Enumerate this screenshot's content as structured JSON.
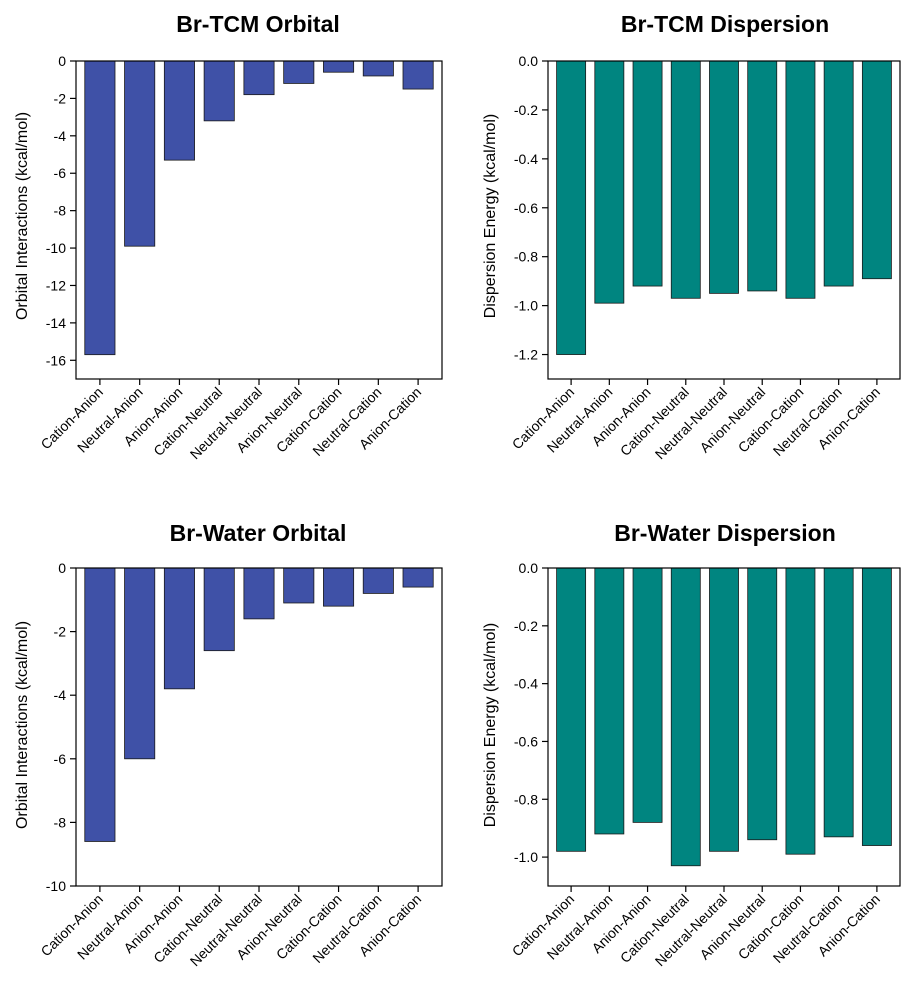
{
  "chart_data": [
    {
      "type": "bar",
      "title": "Br-TCM Orbital",
      "ylabel": "Orbital Interactions (kcal/mol)",
      "categories": [
        "Cation-Anion",
        "Neutral-Anion",
        "Anion-Anion",
        "Cation-Neutral",
        "Neutral-Neutral",
        "Anion-Neutral",
        "Cation-Cation",
        "Neutral-Cation",
        "Anion-Cation"
      ],
      "values": [
        -15.7,
        -9.9,
        -5.3,
        -3.2,
        -1.8,
        -1.2,
        -0.6,
        -0.8,
        -1.5
      ],
      "ylim": [
        -17,
        0
      ],
      "yticks": [
        "0",
        "-2",
        "-4",
        "-6",
        "-8",
        "-10",
        "-12",
        "-14",
        "-16"
      ],
      "ytick_values": [
        0,
        -2,
        -4,
        -6,
        -8,
        -10,
        -12,
        -14,
        -16
      ],
      "color": "#3f51a7"
    },
    {
      "type": "bar",
      "title": "Br-TCM Dispersion",
      "ylabel": "Dispersion Energy (kcal/mol)",
      "categories": [
        "Cation-Anion",
        "Neutral-Anion",
        "Anion-Anion",
        "Cation-Neutral",
        "Neutral-Neutral",
        "Anion-Neutral",
        "Cation-Cation",
        "Neutral-Cation",
        "Anion-Cation"
      ],
      "values": [
        -1.2,
        -0.99,
        -0.92,
        -0.97,
        -0.95,
        -0.94,
        -0.97,
        -0.92,
        -0.89
      ],
      "ylim": [
        -1.3,
        0
      ],
      "yticks": [
        "0.0",
        "-0.2",
        "-0.4",
        "-0.6",
        "-0.8",
        "-1.0",
        "-1.2"
      ],
      "ytick_values": [
        0,
        -0.2,
        -0.4,
        -0.6,
        -0.8,
        -1.0,
        -1.2
      ],
      "color": "#008580"
    },
    {
      "type": "bar",
      "title": "Br-Water Orbital",
      "ylabel": "Orbital Interactions (kcal/mol)",
      "categories": [
        "Cation-Anion",
        "Neutral-Anion",
        "Anion-Anion",
        "Cation-Neutral",
        "Neutral-Neutral",
        "Anion-Neutral",
        "Cation-Cation",
        "Neutral-Cation",
        "Anion-Cation"
      ],
      "values": [
        -8.6,
        -6.0,
        -3.8,
        -2.6,
        -1.6,
        -1.1,
        -1.2,
        -0.8,
        -0.6
      ],
      "ylim": [
        -10,
        0
      ],
      "yticks": [
        "0",
        "-2",
        "-4",
        "-6",
        "-8",
        "-10"
      ],
      "ytick_values": [
        0,
        -2,
        -4,
        -6,
        -8,
        -10
      ],
      "color": "#3f51a7"
    },
    {
      "type": "bar",
      "title": "Br-Water Dispersion",
      "ylabel": "Dispersion Energy (kcal/mol)",
      "categories": [
        "Cation-Anion",
        "Neutral-Anion",
        "Anion-Anion",
        "Cation-Neutral",
        "Neutral-Neutral",
        "Anion-Neutral",
        "Cation-Cation",
        "Neutral-Cation",
        "Anion-Cation"
      ],
      "values": [
        -0.98,
        -0.92,
        -0.88,
        -1.03,
        -0.98,
        -0.94,
        -0.99,
        -0.93,
        -0.96
      ],
      "ylim": [
        -1.1,
        0
      ],
      "yticks": [
        "0.0",
        "-0.2",
        "-0.4",
        "-0.6",
        "-0.8",
        "-1.0"
      ],
      "ytick_values": [
        0,
        -0.2,
        -0.4,
        -0.6,
        -0.8,
        -1.0
      ],
      "color": "#008580"
    }
  ]
}
